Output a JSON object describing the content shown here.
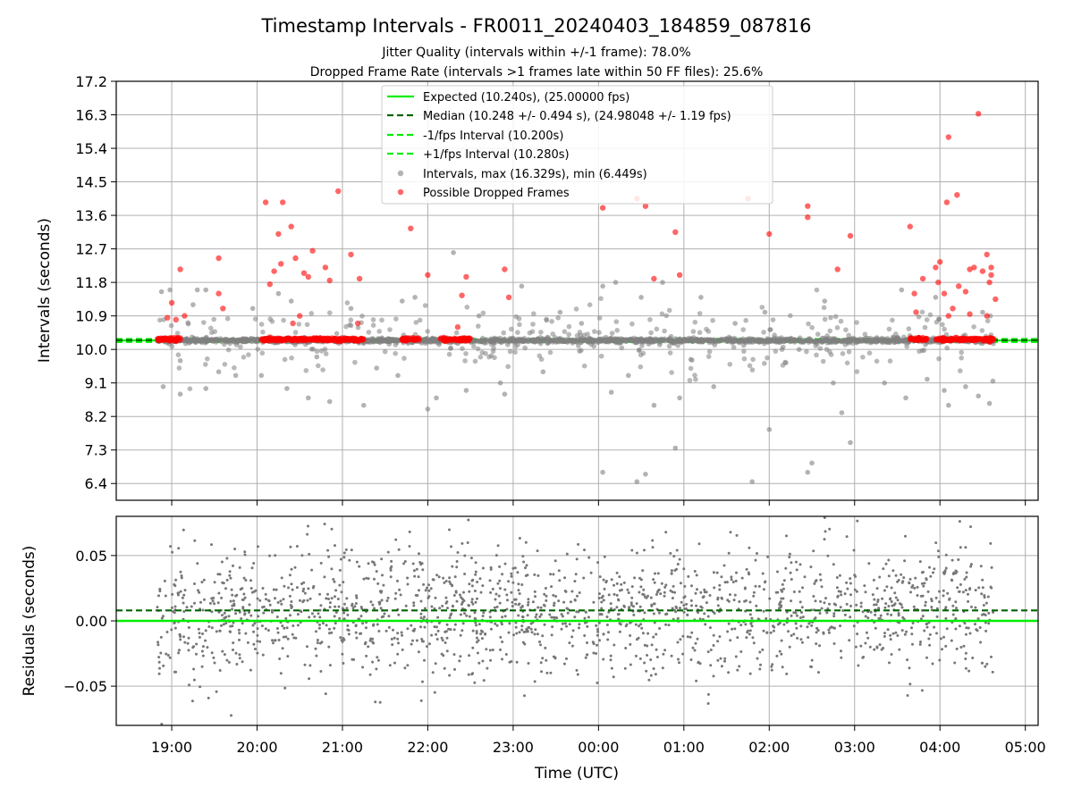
{
  "chart_data": {
    "type": "scatter",
    "title": "Timestamp Intervals - FR0011_20240403_184859_087816",
    "subtitle_lines": [
      "Jitter Quality (intervals within +/-1 frame): 78.0%",
      "Dropped Frame Rate (intervals >1 frames late within 50 FF files): 25.6%"
    ],
    "xlabel": "Time (UTC)",
    "x_ticks": [
      "19:00",
      "20:00",
      "21:00",
      "22:00",
      "23:00",
      "00:00",
      "01:00",
      "02:00",
      "03:00",
      "04:00",
      "05:00"
    ],
    "x_range_hours": [
      18.35,
      29.15
    ],
    "grid": true,
    "top_panel": {
      "ylabel": "Intervals (seconds)",
      "ylim": [
        5.95,
        17.2
      ],
      "y_ticks": [
        "6.4",
        "7.3",
        "8.2",
        "9.1",
        "10.0",
        "10.9",
        "11.8",
        "12.7",
        "13.6",
        "14.5",
        "15.4",
        "16.3",
        "17.2"
      ],
      "legend_position": "top-center",
      "expected_s": 10.24,
      "median_s": 10.248,
      "lower_interval_s": 10.2,
      "upper_interval_s": 10.28,
      "data_start_h": 18.83,
      "data_end_h": 28.63,
      "legend": [
        {
          "label": "Expected (10.240s), (25.00000 fps)",
          "style": "solid",
          "color": "#00ee00"
        },
        {
          "label": "Median (10.248 +/- 0.494 s), (24.98048 +/- 1.19 fps)",
          "style": "dashed",
          "color": "#006400"
        },
        {
          "label": "-1/fps Interval (10.200s)",
          "style": "dashed",
          "color": "#00ee00"
        },
        {
          "label": "+1/fps Interval (10.280s)",
          "style": "dashed",
          "color": "#00ee00"
        },
        {
          "label": "Intervals, max (16.329s), min (6.449s)",
          "style": "marker",
          "color": "#808080"
        },
        {
          "label": "Possible Dropped Frames",
          "style": "marker",
          "color": "#ff0000"
        }
      ],
      "gray_outliers": [
        {
          "t": 18.88,
          "v": 11.55
        },
        {
          "t": 18.98,
          "v": 11.6
        },
        {
          "t": 18.9,
          "v": 9.0
        },
        {
          "t": 19.1,
          "v": 9.7
        },
        {
          "t": 19.1,
          "v": 8.8
        },
        {
          "t": 19.3,
          "v": 11.6
        },
        {
          "t": 19.4,
          "v": 11.6
        },
        {
          "t": 19.4,
          "v": 8.95
        },
        {
          "t": 19.55,
          "v": 9.4
        },
        {
          "t": 19.25,
          "v": 11.2
        },
        {
          "t": 19.75,
          "v": 9.3
        },
        {
          "t": 19.95,
          "v": 11.1
        },
        {
          "t": 20.05,
          "v": 9.3
        },
        {
          "t": 20.25,
          "v": 11.5
        },
        {
          "t": 20.35,
          "v": 8.95
        },
        {
          "t": 20.4,
          "v": 11.3
        },
        {
          "t": 20.6,
          "v": 8.7
        },
        {
          "t": 20.7,
          "v": 9.8
        },
        {
          "t": 20.85,
          "v": 8.6
        },
        {
          "t": 21.1,
          "v": 11.1
        },
        {
          "t": 21.25,
          "v": 8.5
        },
        {
          "t": 21.4,
          "v": 9.5
        },
        {
          "t": 21.65,
          "v": 9.3
        },
        {
          "t": 21.7,
          "v": 11.3
        },
        {
          "t": 21.85,
          "v": 11.4
        },
        {
          "t": 22.0,
          "v": 8.4
        },
        {
          "t": 22.1,
          "v": 8.7
        },
        {
          "t": 22.3,
          "v": 12.6
        },
        {
          "t": 22.45,
          "v": 8.9
        },
        {
          "t": 22.6,
          "v": 10.9
        },
        {
          "t": 22.85,
          "v": 9.1
        },
        {
          "t": 22.9,
          "v": 8.8
        },
        {
          "t": 23.1,
          "v": 11.7
        },
        {
          "t": 23.35,
          "v": 9.4
        },
        {
          "t": 23.55,
          "v": 11.0
        },
        {
          "t": 23.8,
          "v": 10.7
        },
        {
          "t": 24.05,
          "v": 11.7
        },
        {
          "t": 24.05,
          "v": 6.7
        },
        {
          "t": 24.15,
          "v": 8.85
        },
        {
          "t": 24.2,
          "v": 11.8
        },
        {
          "t": 24.35,
          "v": 9.3
        },
        {
          "t": 24.45,
          "v": 6.45
        },
        {
          "t": 24.5,
          "v": 11.4
        },
        {
          "t": 24.55,
          "v": 6.65
        },
        {
          "t": 24.65,
          "v": 8.5
        },
        {
          "t": 24.75,
          "v": 11.8
        },
        {
          "t": 24.9,
          "v": 7.35
        },
        {
          "t": 24.95,
          "v": 8.7
        },
        {
          "t": 25.2,
          "v": 11.4
        },
        {
          "t": 25.35,
          "v": 9.0
        },
        {
          "t": 25.6,
          "v": 10.7
        },
        {
          "t": 25.8,
          "v": 6.45
        },
        {
          "t": 25.95,
          "v": 11.0
        },
        {
          "t": 26.0,
          "v": 7.85
        },
        {
          "t": 26.35,
          "v": 10.0
        },
        {
          "t": 26.45,
          "v": 6.7
        },
        {
          "t": 26.5,
          "v": 6.95
        },
        {
          "t": 26.65,
          "v": 11.3
        },
        {
          "t": 26.75,
          "v": 9.1
        },
        {
          "t": 26.85,
          "v": 8.3
        },
        {
          "t": 26.95,
          "v": 7.5
        },
        {
          "t": 27.15,
          "v": 10.3
        },
        {
          "t": 27.35,
          "v": 9.1
        },
        {
          "t": 27.55,
          "v": 11.6
        },
        {
          "t": 27.6,
          "v": 8.7
        },
        {
          "t": 27.85,
          "v": 9.2
        },
        {
          "t": 27.95,
          "v": 11.4
        },
        {
          "t": 28.05,
          "v": 8.9
        },
        {
          "t": 28.1,
          "v": 8.5
        },
        {
          "t": 28.3,
          "v": 9.0
        },
        {
          "t": 28.45,
          "v": 8.75
        },
        {
          "t": 28.5,
          "v": 11.0
        },
        {
          "t": 28.58,
          "v": 8.55
        },
        {
          "t": 28.62,
          "v": 9.15
        }
      ],
      "red_outliers": [
        {
          "t": 19.0,
          "v": 11.25
        },
        {
          "t": 19.1,
          "v": 12.15
        },
        {
          "t": 19.05,
          "v": 10.8
        },
        {
          "t": 19.15,
          "v": 10.9
        },
        {
          "t": 18.95,
          "v": 10.85
        },
        {
          "t": 19.55,
          "v": 12.45
        },
        {
          "t": 19.6,
          "v": 11.1
        },
        {
          "t": 19.55,
          "v": 11.5
        },
        {
          "t": 20.1,
          "v": 13.95
        },
        {
          "t": 20.15,
          "v": 11.75
        },
        {
          "t": 20.25,
          "v": 13.1
        },
        {
          "t": 20.3,
          "v": 13.95
        },
        {
          "t": 20.28,
          "v": 12.3
        },
        {
          "t": 20.2,
          "v": 12.1
        },
        {
          "t": 20.4,
          "v": 13.3
        },
        {
          "t": 20.45,
          "v": 12.45
        },
        {
          "t": 20.55,
          "v": 12.05
        },
        {
          "t": 20.6,
          "v": 11.95
        },
        {
          "t": 20.65,
          "v": 12.65
        },
        {
          "t": 20.8,
          "v": 12.2
        },
        {
          "t": 20.85,
          "v": 11.85
        },
        {
          "t": 20.5,
          "v": 10.9
        },
        {
          "t": 20.42,
          "v": 10.7
        },
        {
          "t": 20.95,
          "v": 14.25
        },
        {
          "t": 21.1,
          "v": 12.55
        },
        {
          "t": 21.2,
          "v": 11.9
        },
        {
          "t": 21.18,
          "v": 10.7
        },
        {
          "t": 21.8,
          "v": 13.25
        },
        {
          "t": 22.0,
          "v": 12.0
        },
        {
          "t": 22.4,
          "v": 11.45
        },
        {
          "t": 22.45,
          "v": 11.95
        },
        {
          "t": 22.35,
          "v": 10.6
        },
        {
          "t": 22.9,
          "v": 12.15
        },
        {
          "t": 22.95,
          "v": 11.4
        },
        {
          "t": 24.05,
          "v": 13.8
        },
        {
          "t": 24.45,
          "v": 14.05
        },
        {
          "t": 24.55,
          "v": 13.85
        },
        {
          "t": 24.65,
          "v": 11.9
        },
        {
          "t": 24.9,
          "v": 13.15
        },
        {
          "t": 24.95,
          "v": 12.0
        },
        {
          "t": 25.75,
          "v": 14.05
        },
        {
          "t": 26.0,
          "v": 13.1
        },
        {
          "t": 26.45,
          "v": 13.85
        },
        {
          "t": 26.45,
          "v": 13.55
        },
        {
          "t": 26.8,
          "v": 12.15
        },
        {
          "t": 26.95,
          "v": 13.05
        },
        {
          "t": 27.65,
          "v": 13.3
        },
        {
          "t": 27.7,
          "v": 11.5
        },
        {
          "t": 27.72,
          "v": 11.0
        },
        {
          "t": 27.8,
          "v": 11.9
        },
        {
          "t": 27.95,
          "v": 12.2
        },
        {
          "t": 27.98,
          "v": 11.8
        },
        {
          "t": 28.0,
          "v": 12.35
        },
        {
          "t": 28.05,
          "v": 11.5
        },
        {
          "t": 28.1,
          "v": 15.7
        },
        {
          "t": 28.08,
          "v": 13.95
        },
        {
          "t": 28.2,
          "v": 14.15
        },
        {
          "t": 28.22,
          "v": 11.7
        },
        {
          "t": 28.3,
          "v": 11.55
        },
        {
          "t": 28.35,
          "v": 12.15
        },
        {
          "t": 28.4,
          "v": 12.2
        },
        {
          "t": 28.45,
          "v": 16.33
        },
        {
          "t": 28.5,
          "v": 12.1
        },
        {
          "t": 28.55,
          "v": 12.55
        },
        {
          "t": 28.58,
          "v": 11.8
        },
        {
          "t": 28.6,
          "v": 12.2
        },
        {
          "t": 28.65,
          "v": 11.35
        },
        {
          "t": 28.55,
          "v": 10.9
        },
        {
          "t": 28.1,
          "v": 10.9
        },
        {
          "t": 28.15,
          "v": 11.1
        },
        {
          "t": 28.35,
          "v": 10.95
        },
        {
          "t": 28.6,
          "v": 12.0
        }
      ],
      "red_clusters": [
        {
          "start": 18.83,
          "end": 19.1
        },
        {
          "start": 20.05,
          "end": 21.25
        },
        {
          "start": 21.7,
          "end": 21.9
        },
        {
          "start": 22.15,
          "end": 22.5
        },
        {
          "start": 27.65,
          "end": 27.85
        },
        {
          "start": 27.95,
          "end": 28.63
        }
      ]
    },
    "bottom_panel": {
      "ylabel": "Residuals (seconds)",
      "ylim": [
        -0.08,
        0.08
      ],
      "y_ticks": [
        "−0.05",
        "0.00",
        "0.05"
      ],
      "expected_residual_s": 0.0,
      "median_residual_s": 0.008,
      "residual_point_count": 1800,
      "residual_spread_s": 0.025,
      "color": "#808080"
    }
  }
}
